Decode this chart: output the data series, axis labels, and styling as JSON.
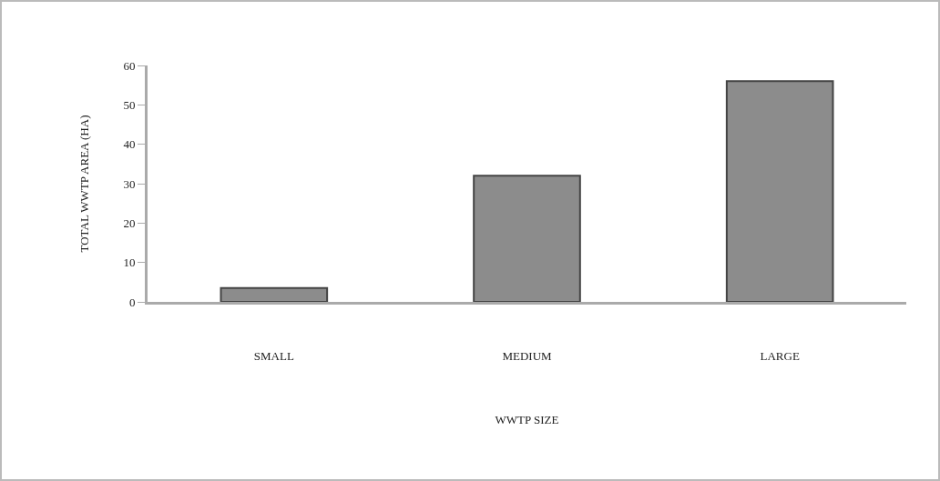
{
  "chart_data": {
    "type": "bar",
    "categories": [
      "SMALL",
      "MEDIUM",
      "LARGE"
    ],
    "values": [
      3.5,
      32,
      56
    ],
    "color": "#8c8c8c",
    "xlabel": "WWTP SIZE",
    "ylabel": "TOTAL WWTP AREA (HA)",
    "ylim": [
      0,
      60
    ],
    "yticks": [
      0,
      10,
      20,
      30,
      40,
      50,
      60
    ],
    "grid": false
  }
}
